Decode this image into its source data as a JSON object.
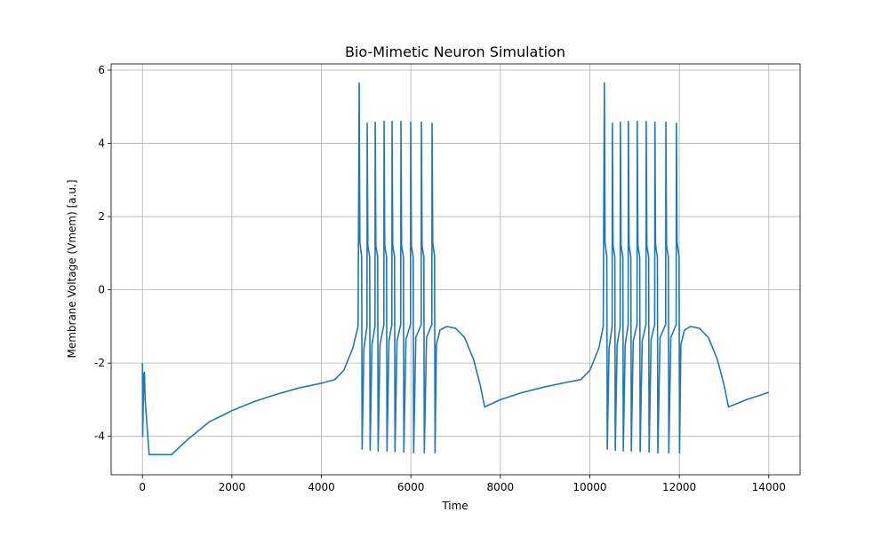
{
  "chart_data": {
    "type": "line",
    "title": "Bio-Mimetic Neuron Simulation",
    "x_label": "Time",
    "y_label": "Membrane Voltage (Vmem) [a.u.]",
    "x": [
      0,
      5,
      30,
      45,
      60,
      150,
      650,
      1000,
      1500,
      2000,
      2500,
      3000,
      3500,
      4000,
      4300,
      4500,
      4700,
      4820,
      4845,
      4860,
      4900,
      4910,
      4950,
      5019,
      5024,
      5039,
      5079,
      5089,
      5130,
      5198,
      5203,
      5218,
      5258,
      5268,
      5310,
      5396,
      5401,
      5416,
      5456,
      5466,
      5510,
      5575,
      5580,
      5595,
      5635,
      5645,
      5690,
      5773,
      5778,
      5793,
      5833,
      5843,
      5890,
      5992,
      5997,
      6012,
      6052,
      6062,
      6110,
      6230,
      6235,
      6250,
      6290,
      6300,
      6350,
      6469,
      6474,
      6489,
      6530,
      6540,
      6570,
      6650,
      6800,
      7000,
      7200,
      7400,
      7550,
      7650,
      8000,
      8500,
      9000,
      9500,
      9800,
      10000,
      10200,
      10300,
      10325,
      10340,
      10380,
      10390,
      10430,
      10499,
      10504,
      10519,
      10559,
      10569,
      10610,
      10678,
      10683,
      10698,
      10738,
      10748,
      10790,
      10857,
      10862,
      10877,
      10917,
      10927,
      10970,
      11055,
      11060,
      11075,
      11115,
      11125,
      11170,
      11255,
      11260,
      11275,
      11315,
      11325,
      11370,
      11450,
      11455,
      11470,
      11510,
      11520,
      11570,
      11695,
      11700,
      11715,
      11755,
      11765,
      11810,
      11930,
      11935,
      11950,
      11995,
      12005,
      12035,
      12115,
      12250,
      12450,
      12650,
      12850,
      13000,
      13100,
      13500,
      14000
    ],
    "values": [
      -2.0,
      -4.0,
      -2.3,
      -2.25,
      -3.0,
      -4.5,
      -4.5,
      -4.1,
      -3.6,
      -3.3,
      -3.05,
      -2.85,
      -2.68,
      -2.55,
      -2.45,
      -2.2,
      -1.6,
      -1.0,
      5.65,
      1.3,
      0.9,
      -4.35,
      -1.6,
      -1.0,
      4.55,
      1.2,
      0.9,
      -4.38,
      -1.5,
      -1.0,
      4.58,
      1.2,
      0.9,
      -4.4,
      -1.5,
      -0.95,
      4.6,
      1.2,
      0.9,
      -4.4,
      -1.4,
      -0.95,
      4.6,
      1.2,
      0.9,
      -4.42,
      -1.4,
      -0.95,
      4.6,
      1.2,
      0.9,
      -4.43,
      -1.35,
      -0.95,
      4.58,
      1.2,
      0.9,
      -4.45,
      -1.3,
      -0.95,
      4.58,
      1.2,
      0.9,
      -4.45,
      -1.3,
      -0.95,
      4.55,
      1.3,
      0.9,
      -4.45,
      -1.5,
      -1.1,
      -1.0,
      -1.05,
      -1.3,
      -1.9,
      -2.6,
      -3.2,
      -3.0,
      -2.8,
      -2.65,
      -2.52,
      -2.45,
      -2.2,
      -1.6,
      -1.0,
      5.65,
      1.3,
      0.9,
      -4.35,
      -1.6,
      -1.0,
      4.55,
      1.2,
      0.9,
      -4.38,
      -1.5,
      -1.0,
      4.58,
      1.2,
      0.9,
      -4.4,
      -1.5,
      -0.95,
      4.6,
      1.2,
      0.9,
      -4.4,
      -1.4,
      -0.95,
      4.6,
      1.2,
      0.9,
      -4.42,
      -1.4,
      -0.95,
      4.6,
      1.2,
      0.9,
      -4.43,
      -1.35,
      -0.95,
      4.58,
      1.2,
      0.9,
      -4.45,
      -1.3,
      -0.95,
      4.58,
      1.2,
      0.9,
      -4.45,
      -1.3,
      -0.95,
      4.55,
      1.3,
      0.9,
      -4.45,
      -1.5,
      -1.1,
      -1.0,
      -1.05,
      -1.3,
      -1.9,
      -2.6,
      -3.2,
      -3.0,
      -2.8
    ],
    "color": "#1f77b4",
    "xlim": [
      -700,
      14700
    ],
    "xticks": [
      0,
      2000,
      4000,
      6000,
      8000,
      10000,
      12000,
      14000
    ],
    "ylim": [
      -5.05,
      6.17
    ],
    "yticks": [
      -4,
      -2,
      0,
      2,
      4,
      6
    ],
    "grid": true
  }
}
